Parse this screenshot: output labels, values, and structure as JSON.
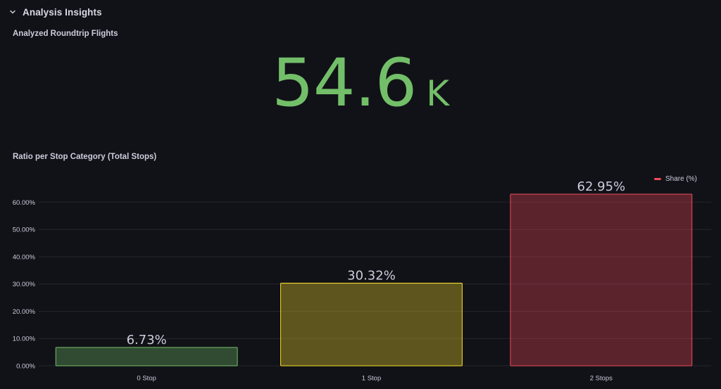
{
  "row": {
    "title": "Analysis Insights",
    "icon": "chevron-down-icon"
  },
  "stat_panel": {
    "title": "Analyzed Roundtrip Flights",
    "value": "54.6",
    "unit": "K",
    "color": "#73bf69"
  },
  "chart_panel": {
    "title": "Ratio per Stop Category (Total Stops)",
    "legend": {
      "label": "Share (%)",
      "color": "#f2495c"
    }
  },
  "chart_data": {
    "type": "bar",
    "title": "Ratio per Stop Category (Total Stops)",
    "categories": [
      "0 Stop",
      "1 Stop",
      "2 Stops"
    ],
    "series": [
      {
        "name": "Share (%)",
        "values": [
          6.73,
          30.32,
          62.95
        ]
      }
    ],
    "value_labels": [
      "6.73%",
      "30.32%",
      "62.95%"
    ],
    "bar_colors": [
      "#73bf69",
      "#fade2a",
      "#f2495c"
    ],
    "yticks": [
      "0.00%",
      "10.00%",
      "20.00%",
      "30.00%",
      "40.00%",
      "50.00%",
      "60.00%"
    ],
    "ylim": [
      0,
      62.95
    ],
    "grid": true,
    "legend_position": "top-right"
  }
}
